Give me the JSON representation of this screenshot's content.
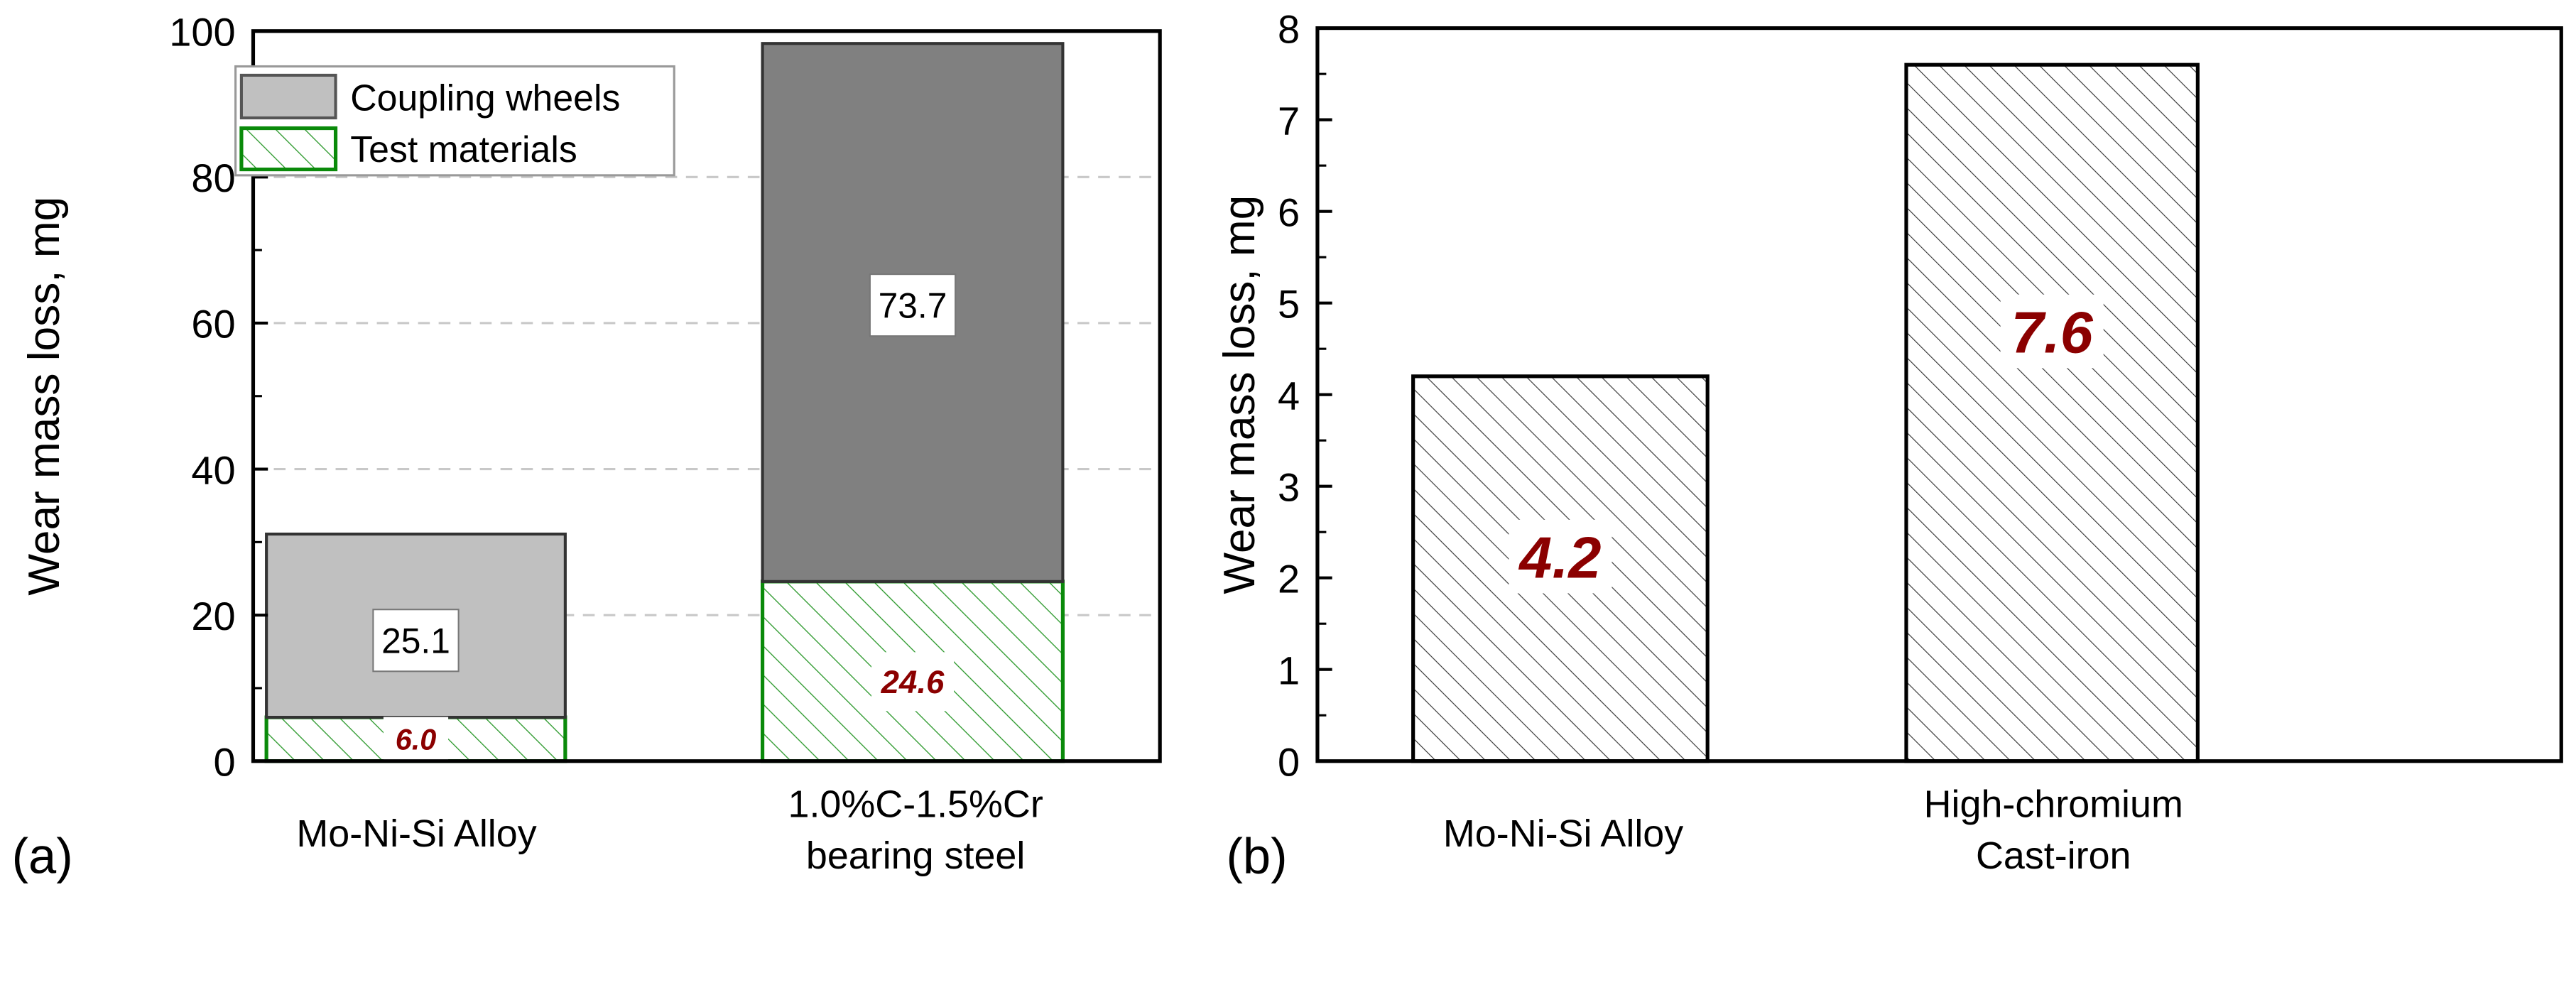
{
  "chart_data": [
    {
      "panel": "(a)",
      "type": "bar",
      "stacked": true,
      "ylabel": "Wear mass loss, mg",
      "xlabel": "",
      "ylim": [
        0,
        100
      ],
      "yticks": [
        0,
        20,
        40,
        60,
        80,
        100
      ],
      "grid": "dashed horizontal at major ticks",
      "categories": [
        [
          "Mo-Ni-Si Alloy"
        ],
        [
          "1.0%C-1.5%Cr",
          "bearing steel"
        ]
      ],
      "series": [
        {
          "name": "Test materials",
          "values": [
            6.0,
            24.6
          ],
          "labels": [
            "6.0",
            "24.6"
          ],
          "color": "#1a8a1a",
          "fill": "hatch"
        },
        {
          "name": "Coupling wheels",
          "values": [
            25.1,
            73.7
          ],
          "labels": [
            "25.1",
            "73.7"
          ],
          "colors": [
            "#c0c0c0",
            "#808080"
          ],
          "fill": "solid"
        }
      ],
      "legend": {
        "position": "top-left",
        "entries": [
          "Coupling wheels",
          "Test materials"
        ]
      }
    },
    {
      "panel": "(b)",
      "type": "bar",
      "ylabel": "Wear mass loss, mg",
      "xlabel": "",
      "ylim": [
        0,
        8
      ],
      "yticks": [
        0,
        1,
        2,
        3,
        4,
        5,
        6,
        7,
        8
      ],
      "grid": "off",
      "categories": [
        [
          "Mo-Ni-Si Alloy"
        ],
        [
          "High-chromium",
          "Cast-iron"
        ]
      ],
      "values": [
        4.2,
        7.6
      ],
      "labels": [
        "4.2",
        "7.6"
      ],
      "fill": "hatch"
    }
  ]
}
